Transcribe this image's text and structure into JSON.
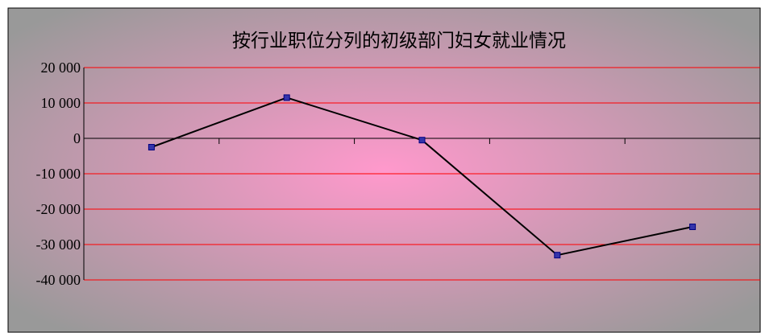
{
  "chart_data": {
    "type": "line",
    "title": "按行业职位分列的初级部门妇女就业情况",
    "xlabel": "",
    "ylabel": "",
    "categories": [
      "",
      "",
      "",
      "",
      ""
    ],
    "series": [
      {
        "values": [
          -2500,
          11500,
          -500,
          -33000,
          -25000
        ]
      }
    ],
    "ylim": [
      -40000,
      20000
    ],
    "yticks": [
      20000,
      10000,
      0,
      -10000,
      -20000,
      -30000,
      -40000
    ],
    "ytick_labels": [
      "20 000",
      "10 000",
      "0",
      "-10 000",
      "-20 000",
      "-30 000",
      "-40 000"
    ],
    "grid": true,
    "legend": "none"
  },
  "colors": {
    "gridline": "#ff0000",
    "axis": "#000000",
    "series_line": "#000000",
    "marker_fill": "#3333aa",
    "marker_stroke": "#000080",
    "background_center": "#ff99cc",
    "background_edge": "#999999"
  }
}
